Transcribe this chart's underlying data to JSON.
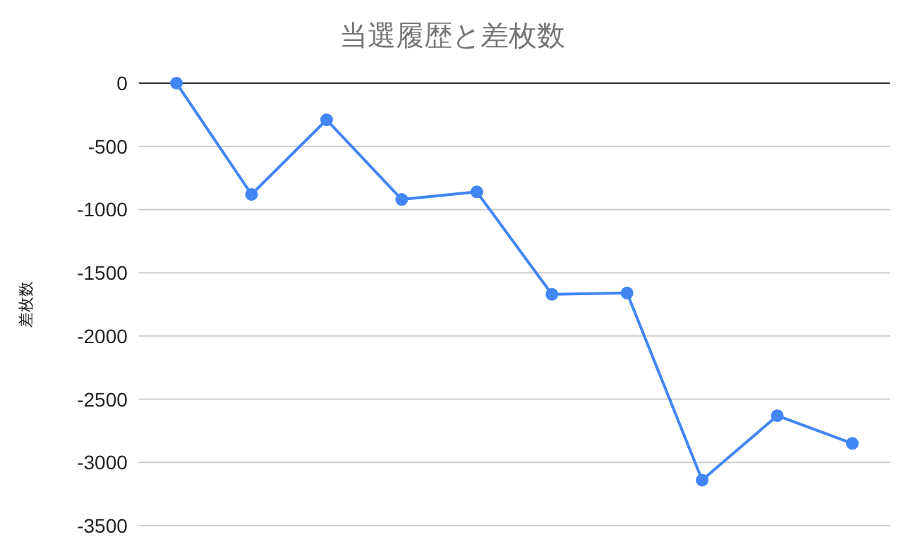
{
  "chart_data": {
    "type": "line",
    "title": "当選履歴と差枚数",
    "ylabel": "差枚数",
    "categories": [
      null,
      null,
      null,
      null,
      null,
      null,
      null,
      null,
      null,
      null
    ],
    "series": [
      {
        "color": "#4285f4",
        "values": [
          0,
          -880,
          -290,
          -920,
          -860,
          -1670,
          -1660,
          -3140,
          -2630,
          -2850
        ]
      }
    ],
    "ylim": [
      -3500,
      0
    ],
    "yticks": [
      0,
      -500,
      -1000,
      -1500,
      -2000,
      -2500,
      -3000,
      -3500
    ],
    "grid": "y",
    "marker": "circle",
    "line_style": "solid"
  }
}
